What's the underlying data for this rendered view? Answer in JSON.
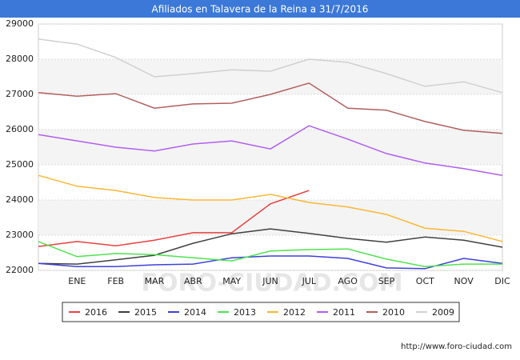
{
  "chart_data": {
    "type": "line",
    "title": "Afiliados en Talavera de la Reina a 31/7/2016",
    "categories": [
      null,
      "ENE",
      "FEB",
      "MAR",
      "ABR",
      "MAY",
      "JUN",
      "JUL",
      "AGO",
      "SEP",
      "OCT",
      "NOV",
      "DIC"
    ],
    "series": [
      {
        "name": "2016",
        "color": "#e8403f",
        "values": [
          22680,
          22820,
          22700,
          22860,
          23070,
          23070,
          23890,
          24270,
          null,
          null,
          null,
          null,
          null
        ]
      },
      {
        "name": "2015",
        "color": "#404040",
        "values": [
          22200,
          22180,
          22300,
          22430,
          22770,
          23040,
          23180,
          23050,
          22910,
          22800,
          22950,
          22860,
          22660
        ]
      },
      {
        "name": "2014",
        "color": "#3f3fd9",
        "values": [
          22200,
          22110,
          22110,
          22160,
          22180,
          22360,
          22410,
          22410,
          22340,
          22070,
          22050,
          22340,
          22200
        ]
      },
      {
        "name": "2013",
        "color": "#4ee24e",
        "values": [
          22820,
          22390,
          22480,
          22450,
          22360,
          22270,
          22550,
          22590,
          22610,
          22320,
          22110,
          22180,
          22180
        ]
      },
      {
        "name": "2012",
        "color": "#fbb735",
        "values": [
          24700,
          24390,
          24270,
          24070,
          24000,
          24000,
          24160,
          23930,
          23800,
          23590,
          23200,
          23110,
          22820
        ]
      },
      {
        "name": "2011",
        "color": "#b25ef0",
        "values": [
          25860,
          25680,
          25500,
          25390,
          25590,
          25680,
          25450,
          26110,
          25730,
          25320,
          25050,
          24890,
          24700
        ]
      },
      {
        "name": "2010",
        "color": "#b35f5f",
        "values": [
          27050,
          26950,
          27020,
          26610,
          26730,
          26750,
          27000,
          27320,
          26610,
          26550,
          26230,
          25980,
          25890
        ]
      },
      {
        "name": "2009",
        "color": "#d0d0d0",
        "values": [
          28570,
          28430,
          28050,
          27500,
          27590,
          27700,
          27660,
          28000,
          27910,
          27590,
          27230,
          27360,
          27050
        ]
      }
    ],
    "ylim": [
      22000,
      29000
    ],
    "yticks": [
      22000,
      23000,
      24000,
      25000,
      26000,
      27000,
      28000,
      29000
    ],
    "grid": true,
    "legend": "bottom",
    "watermark": "FORO-CIUDAD.COM",
    "source": "http://www.foro-ciudad.com"
  }
}
